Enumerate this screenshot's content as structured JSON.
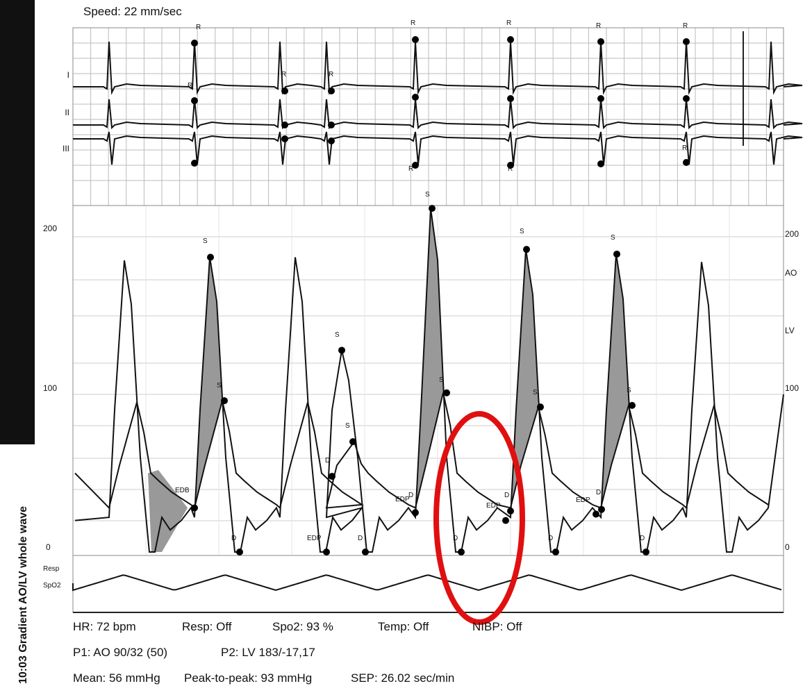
{
  "header": {
    "speed": "Speed: 22 mm/sec"
  },
  "side_caption": "10:03  Gradient  AO/LV whole wave",
  "ecg": {
    "leads": [
      "I",
      "II",
      "III"
    ],
    "marker_labels": [
      "R",
      "R",
      "R",
      "R",
      "R",
      "R",
      "R",
      "R",
      "R",
      "R",
      "R"
    ]
  },
  "pressure": {
    "left_axis": [
      "200",
      "100",
      "0"
    ],
    "right_axis": [
      "200",
      "AO",
      "LV",
      "100",
      "0"
    ],
    "marker_labels": [
      "S",
      "S",
      "S",
      "S",
      "S",
      "S",
      "S",
      "S",
      "S",
      "S",
      "D",
      "D",
      "D",
      "D",
      "D",
      "D",
      "D",
      "D",
      "D",
      "EDB",
      "EDP",
      "EDP",
      "EDP",
      "EDP"
    ]
  },
  "resp": {
    "labels": [
      "Resp",
      "SpO2"
    ]
  },
  "footer": {
    "lines": [
      [
        "HR: 72 bpm",
        "Resp: Off",
        "Spo2: 93 %",
        "Temp: Off",
        "NIBP: Off"
      ],
      [
        "P1: AO  90/32 (50)",
        "P2: LV  183/-17,17"
      ],
      [
        "Mean: 56 mmHg",
        "Peak-to-peak: 93 mmHg",
        "SEP: 26.02 sec/min"
      ]
    ]
  }
}
